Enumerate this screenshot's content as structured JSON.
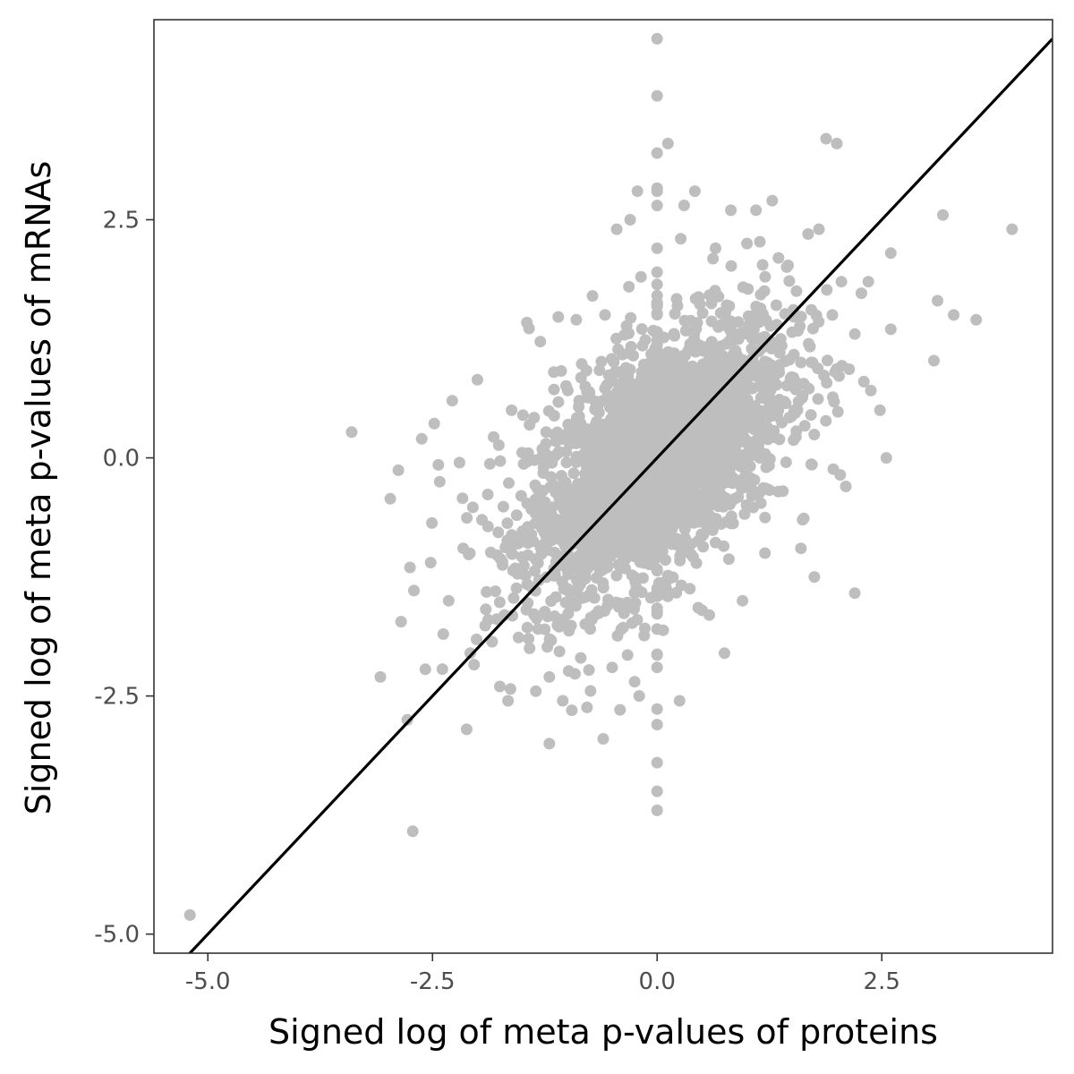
{
  "chart_data": {
    "type": "scatter",
    "title": "",
    "xlabel": "Signed log of meta p-values of proteins",
    "ylabel": "Signed log of meta p-values of mRNAs",
    "xlim": [
      -5.6,
      4.4
    ],
    "ylim": [
      -5.2,
      4.6
    ],
    "x_ticks": [
      {
        "value": -5.0,
        "label": "-5.0"
      },
      {
        "value": -2.5,
        "label": "-2.5"
      },
      {
        "value": 0.0,
        "label": "0.0"
      },
      {
        "value": 2.5,
        "label": "2.5"
      }
    ],
    "y_ticks": [
      {
        "value": 2.5,
        "label": "2.5"
      },
      {
        "value": 0.0,
        "label": "0.0"
      },
      {
        "value": -2.5,
        "label": "-2.5"
      },
      {
        "value": -5.0,
        "label": "-5.0"
      }
    ],
    "grid": false,
    "point_color": "#bebebe",
    "line_color": "#000000",
    "reference_line": {
      "type": "fit",
      "slope": 1.0,
      "intercept": 0.0
    },
    "points": [
      [
        -5.2,
        -4.8
      ],
      [
        -3.4,
        0.27
      ],
      [
        -3.08,
        -2.3
      ],
      [
        -2.97,
        -0.43
      ],
      [
        -2.88,
        -0.13
      ],
      [
        -2.85,
        -1.72
      ],
      [
        -2.78,
        -2.75
      ],
      [
        -2.72,
        -3.92
      ],
      [
        -2.75,
        -1.15
      ],
      [
        -2.62,
        0.2
      ],
      [
        -2.58,
        -2.22
      ],
      [
        -2.52,
        -1.1
      ],
      [
        -2.48,
        0.36
      ],
      [
        -2.42,
        -0.25
      ],
      [
        -2.38,
        -1.85
      ],
      [
        -2.32,
        -1.5
      ],
      [
        -2.28,
        0.6
      ],
      [
        -2.2,
        -0.05
      ],
      [
        -2.12,
        -2.85
      ],
      [
        -2.08,
        -2.05
      ],
      [
        -2.0,
        0.82
      ],
      [
        -1.95,
        -0.65
      ],
      [
        -1.88,
        -1.7
      ],
      [
        -1.82,
        0.22
      ],
      [
        -1.8,
        -1.4
      ],
      [
        -1.75,
        -2.4
      ],
      [
        -1.7,
        -1.65
      ],
      [
        -1.66,
        -2.55
      ],
      [
        -1.62,
        0.5
      ],
      [
        -1.55,
        -0.9
      ],
      [
        -1.5,
        -1.2
      ],
      [
        -1.45,
        1.42
      ],
      [
        -1.42,
        -2.0
      ],
      [
        -1.35,
        -2.45
      ],
      [
        -1.3,
        1.22
      ],
      [
        -1.25,
        -1.8
      ],
      [
        -1.2,
        -2.3
      ],
      [
        -1.2,
        -3.0
      ],
      [
        -1.15,
        0.9
      ],
      [
        -1.1,
        1.48
      ],
      [
        -1.05,
        -2.55
      ],
      [
        -1.0,
        -0.45
      ],
      [
        -0.95,
        -2.65
      ],
      [
        -0.9,
        1.45
      ],
      [
        -0.85,
        -2.1
      ],
      [
        -0.8,
        0.75
      ],
      [
        -0.78,
        -2.62
      ],
      [
        -0.72,
        1.7
      ],
      [
        -0.6,
        -2.95
      ],
      [
        -0.58,
        1.5
      ],
      [
        -0.5,
        -2.2
      ],
      [
        -0.45,
        2.4
      ],
      [
        -0.4,
        -1.8
      ],
      [
        -0.3,
        2.5
      ],
      [
        -0.25,
        -2.35
      ],
      [
        -0.22,
        2.8
      ],
      [
        -0.2,
        -2.5
      ],
      [
        -0.18,
        1.9
      ],
      [
        -0.1,
        -0.8
      ],
      [
        0.0,
        4.4
      ],
      [
        0.0,
        3.8
      ],
      [
        0.0,
        3.2
      ],
      [
        0.0,
        2.8
      ],
      [
        0.0,
        2.2
      ],
      [
        0.0,
        1.6
      ],
      [
        0.0,
        -2.2
      ],
      [
        0.0,
        -2.8
      ],
      [
        0.0,
        -3.2
      ],
      [
        0.0,
        -3.5
      ],
      [
        0.0,
        -3.7
      ],
      [
        0.12,
        3.3
      ],
      [
        0.25,
        -2.55
      ],
      [
        0.3,
        2.65
      ],
      [
        0.42,
        2.8
      ],
      [
        0.5,
        -1.6
      ],
      [
        0.58,
        -1.65
      ],
      [
        0.65,
        2.2
      ],
      [
        0.75,
        -2.05
      ],
      [
        0.82,
        2.6
      ],
      [
        0.95,
        -1.5
      ],
      [
        1.0,
        2.25
      ],
      [
        1.1,
        2.6
      ],
      [
        1.2,
        -1.0
      ],
      [
        1.28,
        2.7
      ],
      [
        1.35,
        2.1
      ],
      [
        1.4,
        -0.35
      ],
      [
        1.55,
        1.75
      ],
      [
        1.6,
        -0.95
      ],
      [
        1.68,
        2.35
      ],
      [
        1.75,
        -1.25
      ],
      [
        1.8,
        2.4
      ],
      [
        1.88,
        3.35
      ],
      [
        1.95,
        1.5
      ],
      [
        2.0,
        3.3
      ],
      [
        2.05,
        1.85
      ],
      [
        2.1,
        -0.3
      ],
      [
        2.2,
        1.3
      ],
      [
        2.2,
        -1.42
      ],
      [
        2.3,
        0.8
      ],
      [
        2.48,
        0.5
      ],
      [
        2.55,
        0.0
      ],
      [
        2.6,
        1.35
      ],
      [
        3.08,
        1.02
      ],
      [
        3.12,
        1.65
      ],
      [
        3.18,
        2.55
      ],
      [
        3.3,
        1.5
      ],
      [
        3.55,
        1.45
      ],
      [
        3.95,
        2.4
      ],
      [
        2.6,
        2.15
      ],
      [
        2.35,
        1.85
      ]
    ],
    "cloud": {
      "center": [
        0.0,
        0.0
      ],
      "sd_x": 0.72,
      "sd_y": 0.72,
      "correlation": 0.55,
      "count": 2600
    }
  }
}
